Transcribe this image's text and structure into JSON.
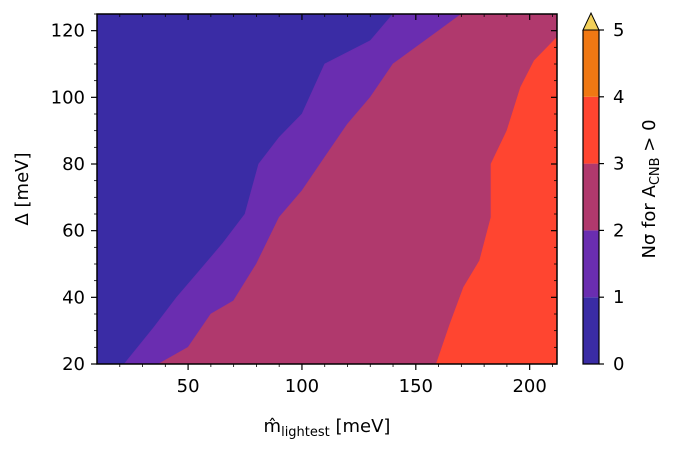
{
  "chart_data": {
    "type": "contourf",
    "xlabel": {
      "base": "m̂",
      "sub": "lightest",
      "unit": " [meV]"
    },
    "ylabel": "Δ [meV]",
    "xlim": [
      10,
      212
    ],
    "ylim": [
      20,
      125
    ],
    "x_ticks": [
      50,
      100,
      150,
      200
    ],
    "x_tick_labels": [
      "50",
      "100",
      "150",
      "200"
    ],
    "y_ticks": [
      20,
      40,
      60,
      80,
      100,
      120
    ],
    "y_tick_labels": [
      "20",
      "40",
      "60",
      "80",
      "100",
      "120"
    ],
    "colorbar": {
      "label": {
        "pre": "Nσ for A",
        "sub": "CNB",
        "post": " > 0"
      },
      "levels": [
        0,
        1,
        2,
        3,
        4,
        5
      ],
      "tick_labels": [
        "0",
        "1",
        "2",
        "3",
        "4",
        "5"
      ],
      "colors": [
        "#3a2ca5",
        "#6a2db0",
        "#b0396d",
        "#ff4530",
        "#f07813"
      ],
      "extend_color": "#f2d05a",
      "extend": "max"
    },
    "regions": [
      {
        "name": "0-1σ",
        "color": "#3a2ca5",
        "points": [
          [
            10,
            20
          ],
          [
            10,
            125
          ],
          [
            212,
            125
          ],
          [
            212,
            20
          ]
        ]
      },
      {
        "name": "1-2σ",
        "color": "#6a2db0",
        "points": [
          [
            22,
            20
          ],
          [
            35,
            31
          ],
          [
            45,
            40
          ],
          [
            55,
            48
          ],
          [
            65,
            56
          ],
          [
            75,
            65
          ],
          [
            81,
            80
          ],
          [
            90,
            88
          ],
          [
            100,
            95
          ],
          [
            110,
            110
          ],
          [
            130,
            117
          ],
          [
            140,
            125
          ],
          [
            212,
            125
          ],
          [
            212,
            20
          ]
        ]
      },
      {
        "name": "2-3σ",
        "color": "#b0396d",
        "points": [
          [
            37,
            20
          ],
          [
            50,
            25
          ],
          [
            60,
            35
          ],
          [
            70,
            39
          ],
          [
            80,
            50
          ],
          [
            90,
            64
          ],
          [
            100,
            72
          ],
          [
            110,
            82
          ],
          [
            120,
            92
          ],
          [
            130,
            100
          ],
          [
            140,
            110
          ],
          [
            160,
            120
          ],
          [
            170,
            125
          ],
          [
            212,
            125
          ],
          [
            212,
            20
          ]
        ]
      },
      {
        "name": "3-4σ",
        "color": "#ff4530",
        "points": [
          [
            159,
            20
          ],
          [
            165,
            32
          ],
          [
            171,
            43
          ],
          [
            178,
            51
          ],
          [
            183,
            64
          ],
          [
            183,
            80
          ],
          [
            190,
            90
          ],
          [
            196,
            103
          ],
          [
            202,
            111
          ],
          [
            212,
            118
          ],
          [
            212,
            20
          ]
        ]
      }
    ]
  }
}
